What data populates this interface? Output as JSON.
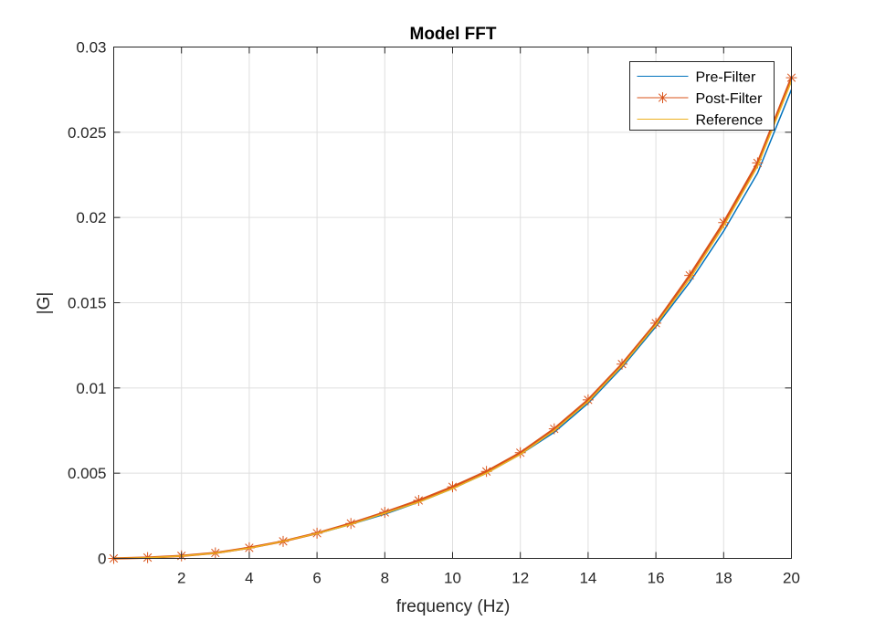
{
  "chart_data": {
    "type": "line",
    "title": "Model FFT",
    "xlabel": "frequency (Hz)",
    "ylabel": "|G|",
    "xlim": [
      0,
      20
    ],
    "ylim": [
      0,
      0.03
    ],
    "xticks": [
      2,
      4,
      6,
      8,
      10,
      12,
      14,
      16,
      18,
      20
    ],
    "xtick_labels": [
      "2",
      "4",
      "6",
      "8",
      "10",
      "12",
      "14",
      "16",
      "18",
      "20"
    ],
    "yticks": [
      0,
      0.005,
      0.01,
      0.015,
      0.02,
      0.025,
      0.03
    ],
    "ytick_labels": [
      "0",
      "0.005",
      "0.01",
      "0.015",
      "0.02",
      "0.025",
      "0.03"
    ],
    "grid": true,
    "legend_position": "top-right",
    "x": [
      0,
      1,
      2,
      3,
      4,
      5,
      6,
      7,
      8,
      9,
      10,
      11,
      12,
      13,
      14,
      15,
      16,
      17,
      18,
      19,
      20
    ],
    "series": [
      {
        "name": "Pre-Filter",
        "color": "#0072BD",
        "marker": "none",
        "values": [
          0,
          4e-05,
          0.00014,
          0.0003,
          0.0006,
          0.001,
          0.00145,
          0.002,
          0.0026,
          0.0033,
          0.0041,
          0.005,
          0.0061,
          0.0074,
          0.0091,
          0.0112,
          0.0136,
          0.0162,
          0.0192,
          0.0226,
          0.0275
        ]
      },
      {
        "name": "Post-Filter",
        "color": "#D95319",
        "marker": "asterisk",
        "values": [
          0,
          5e-05,
          0.00015,
          0.00032,
          0.00062,
          0.001,
          0.00148,
          0.00205,
          0.0027,
          0.0034,
          0.0042,
          0.0051,
          0.0062,
          0.0076,
          0.0093,
          0.0114,
          0.0138,
          0.0166,
          0.0197,
          0.0232,
          0.0282
        ]
      },
      {
        "name": "Reference",
        "color": "#EDB120",
        "marker": "none",
        "values": [
          0,
          4e-05,
          0.00014,
          0.00031,
          0.0006,
          0.001,
          0.00146,
          0.002,
          0.00265,
          0.0033,
          0.0041,
          0.005,
          0.0061,
          0.0075,
          0.0092,
          0.0113,
          0.0137,
          0.0164,
          0.0195,
          0.023,
          0.028
        ]
      }
    ]
  }
}
